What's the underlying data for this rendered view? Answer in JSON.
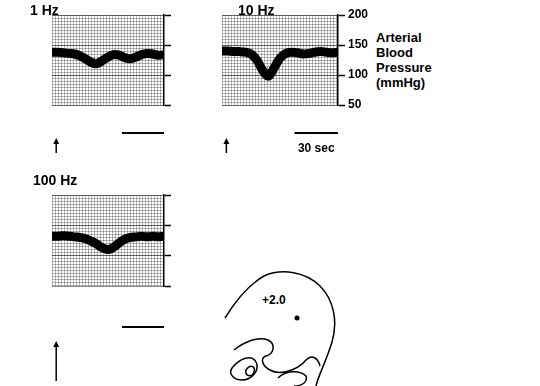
{
  "chart_data": [
    {
      "type": "line",
      "title": "1 Hz",
      "x": [
        0,
        4,
        8,
        12,
        16,
        20,
        24,
        28,
        32,
        36,
        40,
        44,
        48,
        52,
        56,
        60,
        64,
        68,
        72,
        76,
        80
      ],
      "values": [
        138,
        138,
        137,
        136,
        135,
        132,
        127,
        121,
        119,
        124,
        130,
        134,
        133,
        129,
        127,
        130,
        134,
        136,
        135,
        133,
        134
      ],
      "color": "#000000",
      "xlim": [
        0,
        80
      ],
      "ylim": [
        50,
        200
      ],
      "yticks": [
        50,
        100,
        150,
        200
      ],
      "grid": true,
      "tick_labels": false,
      "stimulus": 3,
      "scale_bar": 30
    },
    {
      "type": "line",
      "title": "10 Hz",
      "x": [
        0,
        4,
        8,
        12,
        16,
        20,
        24,
        28,
        32,
        36,
        40,
        44,
        48,
        52,
        56,
        60,
        64,
        68,
        72,
        76,
        80
      ],
      "values": [
        140,
        140,
        139,
        139,
        138,
        135,
        125,
        108,
        98,
        112,
        128,
        136,
        138,
        137,
        135,
        136,
        138,
        139,
        138,
        137,
        138
      ],
      "color": "#000000",
      "xlim": [
        0,
        80
      ],
      "ylim": [
        50,
        200
      ],
      "yticks": [
        50,
        100,
        150,
        200
      ],
      "grid": true,
      "tick_labels": "y",
      "ylabel": "Arterial Blood Pressure (mmHg)",
      "stimulus": 3,
      "scale_bar": 30,
      "scale_bar_label": "30 sec"
    },
    {
      "type": "line",
      "title": "100 Hz",
      "x": [
        0,
        4,
        8,
        12,
        16,
        20,
        24,
        28,
        32,
        36,
        40,
        44,
        48,
        52,
        56,
        60,
        64,
        68,
        72,
        76,
        80
      ],
      "values": [
        132,
        132,
        133,
        132,
        131,
        130,
        128,
        124,
        119,
        113,
        110,
        114,
        121,
        127,
        130,
        131,
        132,
        131,
        132,
        131,
        132
      ],
      "color": "#000000",
      "xlim": [
        0,
        80
      ],
      "ylim": [
        50,
        200
      ],
      "yticks": [
        50,
        100,
        150,
        200
      ],
      "grid": true,
      "tick_labels": false,
      "stimulus": 3,
      "scale_bar": 30
    }
  ],
  "diagram": {
    "label": "+2.0"
  }
}
